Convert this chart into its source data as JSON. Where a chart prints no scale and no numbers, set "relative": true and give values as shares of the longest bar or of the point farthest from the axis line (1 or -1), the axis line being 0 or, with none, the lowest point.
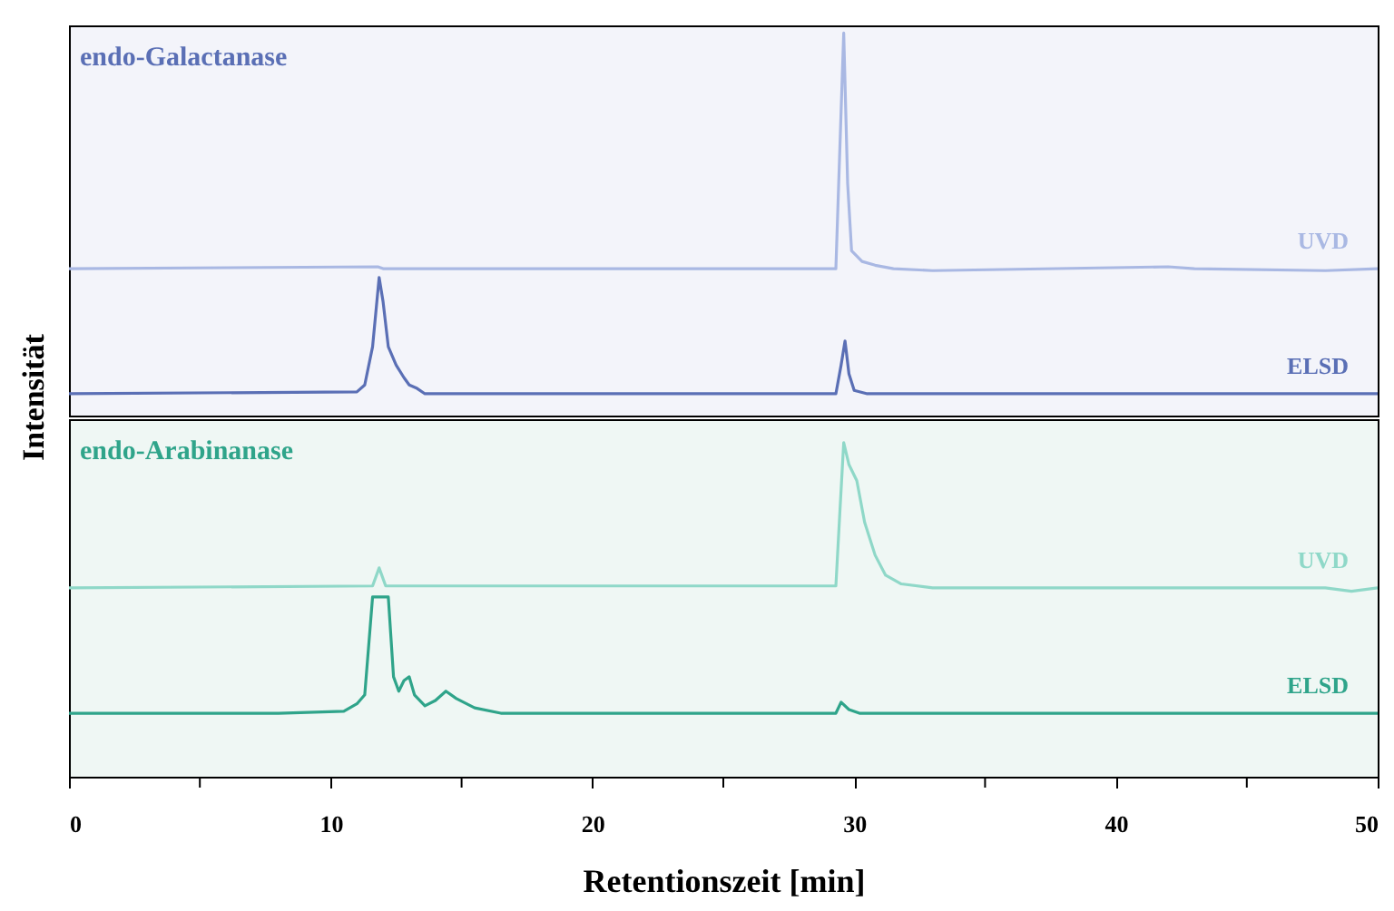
{
  "chart_data": [
    {
      "type": "line",
      "title": "endo-Galactanase",
      "ylabel": "Intensität",
      "relative": true,
      "xlim": [
        0,
        50
      ],
      "xticks": [
        0,
        10,
        20,
        30,
        40,
        50
      ],
      "tick_labels": false,
      "grid": false,
      "series": [
        {
          "name": "UVD",
          "color": "#a9b8e3",
          "x": [
            0,
            11.8,
            12,
            29.3,
            29.5,
            29.6,
            29.75,
            29.9,
            30.3,
            30.8,
            31.5,
            33,
            42,
            43,
            48,
            50
          ],
          "values": [
            0.384,
            0.389,
            0.384,
            0.384,
            0.796,
            1,
            0.607,
            0.431,
            0.403,
            0.393,
            0.384,
            0.379,
            0.389,
            0.384,
            0.379,
            0.384
          ]
        },
        {
          "name": "ELSD",
          "color": "#5a6fb5",
          "x": [
            0,
            11,
            11.3,
            11.6,
            11.85,
            12,
            12.2,
            12.5,
            12.8,
            13,
            13.3,
            13.6,
            29.3,
            29.5,
            29.65,
            29.8,
            30,
            30.5,
            50
          ],
          "values": [
            0.057,
            0.062,
            0.08,
            0.18,
            0.361,
            0.298,
            0.18,
            0.132,
            0.099,
            0.08,
            0.071,
            0.057,
            0.057,
            0.132,
            0.195,
            0.109,
            0.066,
            0.057,
            0.057
          ]
        }
      ]
    },
    {
      "type": "line",
      "title": "endo-Arabinanase",
      "xlabel": "Retentionszeit [min]",
      "relative": true,
      "xlim": [
        0,
        50
      ],
      "xticks": [
        0,
        {
          "value": 5,
          "label": null
        },
        10,
        {
          "value": 15,
          "label": null
        },
        20,
        {
          "value": 25,
          "label": null
        },
        30,
        {
          "value": 35,
          "label": null
        },
        40,
        {
          "value": 45,
          "label": null
        },
        50
      ],
      "tick_labels": "x",
      "grid": false,
      "series": [
        {
          "name": "UVD",
          "color": "#8fd8c8",
          "x": [
            0,
            11.6,
            11.85,
            12.1,
            29.3,
            29.45,
            29.6,
            29.8,
            30.1,
            30.4,
            30.8,
            31.2,
            31.8,
            33,
            48,
            49,
            50
          ],
          "values": [
            0.565,
            0.571,
            0.625,
            0.571,
            0.571,
            0.788,
            1,
            0.934,
            0.886,
            0.761,
            0.663,
            0.603,
            0.577,
            0.565,
            0.565,
            0.555,
            0.565
          ]
        },
        {
          "name": "ELSD",
          "color": "#2fa48a",
          "x": [
            0,
            8,
            10.5,
            11,
            11.3,
            11.6,
            12.2,
            12.4,
            12.6,
            12.8,
            13,
            13.2,
            13.6,
            14,
            14.4,
            14.8,
            15.5,
            16.5,
            29.3,
            29.5,
            29.8,
            30.2,
            50
          ],
          "values": [
            0.19,
            0.19,
            0.196,
            0.218,
            0.245,
            0.538,
            0.538,
            0.299,
            0.256,
            0.288,
            0.299,
            0.245,
            0.212,
            0.228,
            0.256,
            0.234,
            0.206,
            0.19,
            0.19,
            0.223,
            0.201,
            0.19,
            0.19
          ]
        }
      ]
    }
  ]
}
